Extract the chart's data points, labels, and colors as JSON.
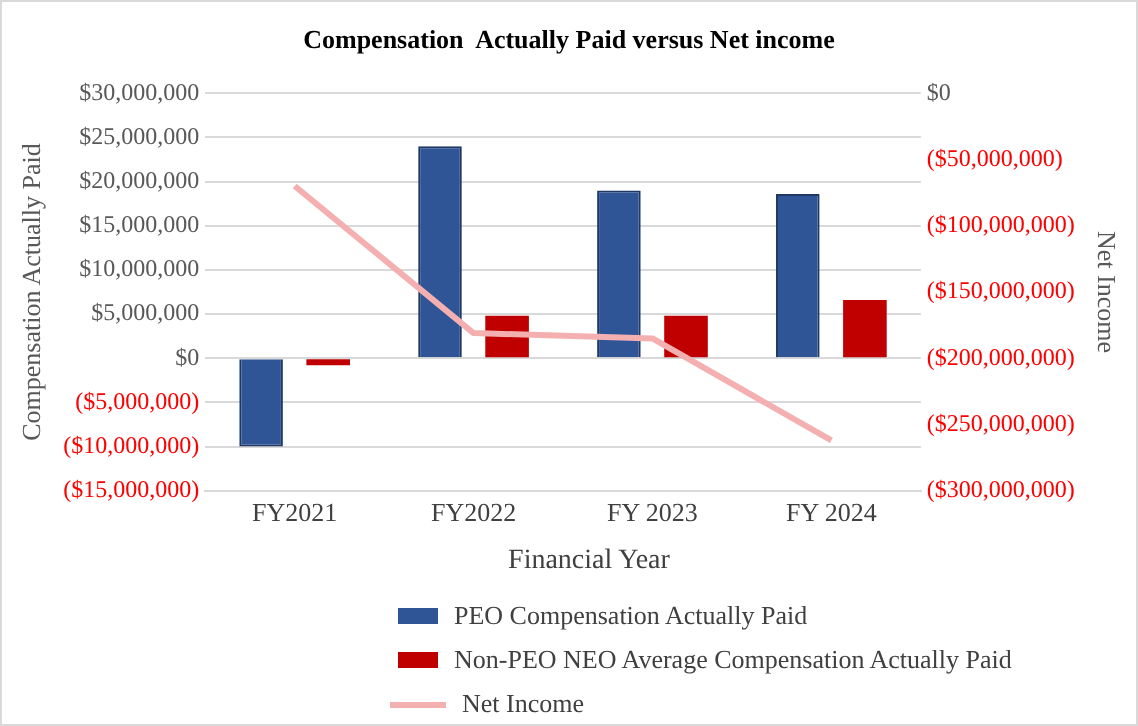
{
  "chart_data": {
    "type": "bar",
    "title": "Compensation  Actually Paid versus Net income",
    "xlabel": "Financial Year",
    "ylabel": "Compensation Actually Paid",
    "y2label": "Net Income",
    "categories": [
      "FY2021",
      "FY2022",
      "FY 2023",
      "FY 2024"
    ],
    "series": [
      {
        "name": "PEO Compensation Actually Paid",
        "color": "#2f5597",
        "values": [
          -10000000,
          24000000,
          19000000,
          18600000
        ]
      },
      {
        "name": "Non-PEO NEO Average Compensation Actually Paid",
        "color": "#c00000",
        "values": [
          -800000,
          4800000,
          4800000,
          6600000
        ]
      },
      {
        "name": "Net Income",
        "type": "line",
        "axis": "y2",
        "color": "#f4b0b0",
        "values": [
          -70000000,
          -181000000,
          -185000000,
          -262000000
        ]
      }
    ],
    "ylim": [
      -15000000,
      30000000
    ],
    "yticks": [
      {
        "value": -15000000,
        "label": "($15,000,000)"
      },
      {
        "value": -10000000,
        "label": "($10,000,000)"
      },
      {
        "value": -5000000,
        "label": "($5,000,000)"
      },
      {
        "value": 0,
        "label": "$0"
      },
      {
        "value": 5000000,
        "label": "$5,000,000"
      },
      {
        "value": 10000000,
        "label": "$10,000,000"
      },
      {
        "value": 15000000,
        "label": "$15,000,000"
      },
      {
        "value": 20000000,
        "label": "$20,000,000"
      },
      {
        "value": 25000000,
        "label": "$25,000,000"
      },
      {
        "value": 30000000,
        "label": "$30,000,000"
      }
    ],
    "y2lim": [
      -300000000,
      0
    ],
    "y2ticks": [
      {
        "value": -300000000,
        "label": "($300,000,000)"
      },
      {
        "value": -250000000,
        "label": "($250,000,000)"
      },
      {
        "value": -200000000,
        "label": "($200,000,000)"
      },
      {
        "value": -150000000,
        "label": "($150,000,000)"
      },
      {
        "value": -100000000,
        "label": "($100,000,000)"
      },
      {
        "value": -50000000,
        "label": "($50,000,000)"
      },
      {
        "value": 0,
        "label": "$0"
      }
    ],
    "grid": "y",
    "legend": "bottom",
    "marker": "none",
    "line_style": "solid"
  }
}
